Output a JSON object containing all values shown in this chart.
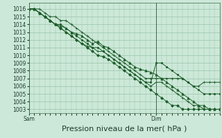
{
  "title": "Pression niveau de la mer( hPa )",
  "xlabel_sam": "Sam",
  "xlabel_dim": "Dim",
  "background_color": "#cce8d8",
  "grid_color": "#99c4aa",
  "line_color": "#1a5c28",
  "ylim": [
    1002.5,
    1016.8
  ],
  "yticks": [
    1003,
    1004,
    1005,
    1006,
    1007,
    1008,
    1009,
    1010,
    1011,
    1012,
    1013,
    1014,
    1015,
    1016
  ],
  "xlim": [
    0,
    36
  ],
  "sam_x": 0,
  "dim_x": 24,
  "lines": [
    {
      "x": [
        0,
        1,
        2,
        3,
        4,
        5,
        6,
        7,
        8,
        9,
        10,
        11,
        12,
        13,
        14,
        15,
        16,
        17,
        18,
        19,
        20,
        21,
        22,
        23,
        24,
        25,
        26,
        27,
        28,
        29,
        30,
        31,
        32,
        33,
        34,
        35,
        36
      ],
      "y": [
        1016,
        1016,
        1016,
        1015.5,
        1015,
        1015,
        1014.5,
        1014.5,
        1014,
        1013.5,
        1013,
        1012.5,
        1012,
        1011.5,
        1011,
        1010.5,
        1010,
        1009.5,
        1009,
        1008.5,
        1008,
        1007.5,
        1007,
        1007,
        1007,
        1007,
        1007,
        1007,
        1007,
        1007,
        1006.5,
        1006,
        1006,
        1006.5,
        1006.5,
        1006.5,
        1006.5
      ],
      "marker": "+",
      "markersize": 2.5
    },
    {
      "x": [
        0,
        1,
        2,
        3,
        4,
        5,
        6,
        7,
        8,
        9,
        10,
        11,
        12,
        13,
        14,
        15,
        16,
        17,
        18,
        19,
        20,
        21,
        22,
        23,
        24,
        25,
        26,
        27,
        28,
        29,
        30,
        31,
        32,
        33,
        34,
        35,
        36
      ],
      "y": [
        1016,
        1016,
        1015.5,
        1015,
        1014.5,
        1014,
        1014,
        1013.5,
        1013,
        1012.5,
        1012,
        1011.5,
        1011,
        1011,
        1010.5,
        1010,
        1009.5,
        1009,
        1008.5,
        1008,
        1007.5,
        1007,
        1006.5,
        1006.5,
        1009,
        1009,
        1008.5,
        1008,
        1007.5,
        1007,
        1006.5,
        1006,
        1005.5,
        1005,
        1005,
        1005,
        1005
      ],
      "marker": "s",
      "markersize": 2.0
    },
    {
      "x": [
        0,
        1,
        2,
        3,
        4,
        5,
        6,
        7,
        8,
        9,
        10,
        11,
        12,
        13,
        14,
        15,
        16,
        17,
        18,
        19,
        20,
        21,
        22,
        23,
        24,
        25,
        26,
        27,
        28,
        29,
        30,
        31,
        32,
        33,
        34,
        35,
        36
      ],
      "y": [
        1016,
        1016,
        1015.5,
        1015,
        1014.5,
        1014,
        1013.5,
        1013,
        1012.5,
        1012,
        1011.5,
        1011.2,
        1011,
        1010.5,
        1010.5,
        1010,
        1009.5,
        1009,
        1008.5,
        1008,
        1007.5,
        1007,
        1006.5,
        1006,
        1006.5,
        1006.5,
        1006,
        1005.5,
        1005,
        1004.5,
        1004,
        1003.5,
        1003.5,
        1003,
        1003,
        1003,
        1003
      ],
      "marker": "+",
      "markersize": 2.5
    },
    {
      "x": [
        0,
        1,
        2,
        3,
        4,
        5,
        6,
        7,
        8,
        9,
        10,
        11,
        12,
        13,
        14,
        15,
        16,
        17,
        18,
        19,
        20,
        21,
        22,
        23,
        24,
        25,
        26,
        27,
        28,
        29,
        30,
        31,
        32,
        33,
        34,
        35,
        36
      ],
      "y": [
        1016,
        1016,
        1015.5,
        1015,
        1014.5,
        1014,
        1013.8,
        1013.5,
        1013,
        1012.8,
        1012.5,
        1012,
        1011.5,
        1011.8,
        1011.2,
        1011,
        1010.5,
        1010,
        1009.5,
        1009,
        1008.5,
        1008.2,
        1008,
        1007.8,
        1007.5,
        1007,
        1006.5,
        1006,
        1005.5,
        1005,
        1004.5,
        1004,
        1003.5,
        1003.5,
        1003,
        1003,
        1003
      ],
      "marker": "^",
      "markersize": 2.5
    },
    {
      "x": [
        0,
        1,
        2,
        3,
        4,
        5,
        6,
        7,
        8,
        9,
        10,
        11,
        12,
        13,
        14,
        15,
        16,
        17,
        18,
        19,
        20,
        21,
        22,
        23,
        24,
        25,
        26,
        27,
        28,
        29,
        30,
        31,
        32,
        33,
        34,
        35,
        36
      ],
      "y": [
        1016,
        1016,
        1015.5,
        1015,
        1014.5,
        1014,
        1013.5,
        1013,
        1012.5,
        1012,
        1011.5,
        1011,
        1010.5,
        1010,
        1009.8,
        1009.5,
        1009,
        1008.5,
        1008,
        1007.5,
        1007,
        1006.5,
        1006,
        1005.5,
        1005,
        1004.5,
        1004,
        1003.5,
        1003.5,
        1003,
        1003,
        1003,
        1003,
        1003,
        1003,
        1003,
        1003
      ],
      "marker": "D",
      "markersize": 2.0
    }
  ],
  "title_fontsize": 8,
  "tick_fontsize": 5.5
}
